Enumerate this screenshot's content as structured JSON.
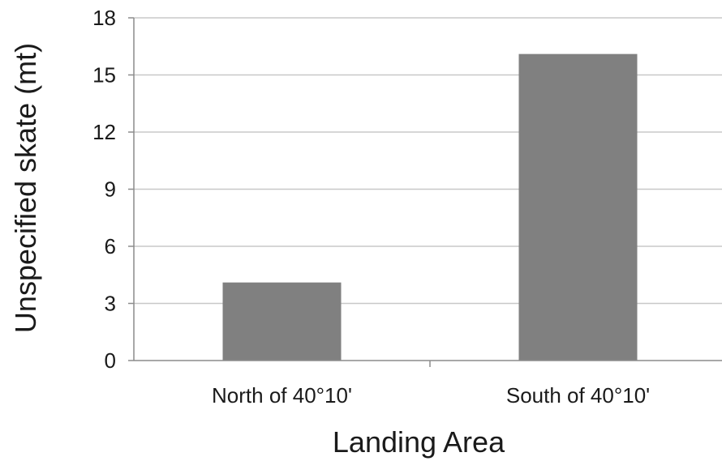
{
  "chart_data": {
    "type": "bar",
    "title": "",
    "xlabel": "Landing Area",
    "ylabel": "Unspecified skate (mt)",
    "categories": [
      "North of 40°10'",
      "South of 40°10'"
    ],
    "values": [
      4.1,
      16.1
    ],
    "ylim": [
      0,
      18
    ],
    "yticks": [
      0,
      3,
      6,
      9,
      12,
      15,
      18
    ],
    "grid": true,
    "legend": "none",
    "colors": {
      "bar": "#808080",
      "grid": "#c8c8c8",
      "axis": "#8c8c8c"
    }
  }
}
